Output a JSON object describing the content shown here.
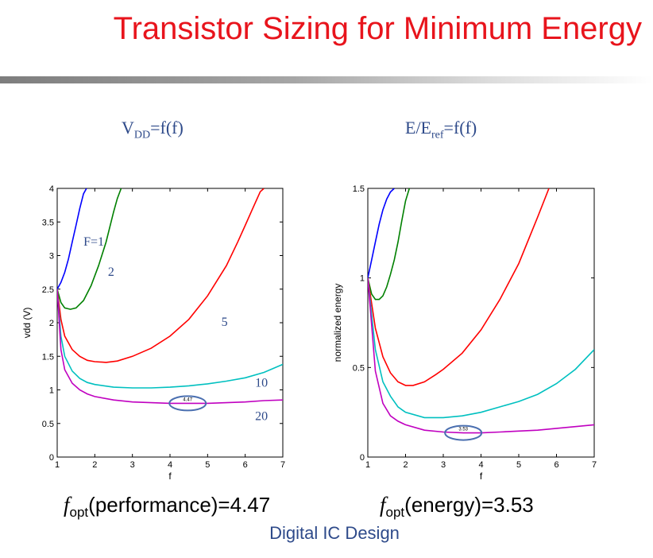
{
  "slide": {
    "title": "Transistor Sizing for Minimum Energy",
    "footer": "Digital IC Design"
  },
  "headings": {
    "left": {
      "base": "V",
      "sub": "DD",
      "rest": "=f(f)"
    },
    "right": {
      "base": "E/E",
      "sub": "ref",
      "rest": "=f(f)"
    }
  },
  "captions": {
    "left": {
      "f": "f",
      "sub": "opt",
      "rest": "(performance)=4.47"
    },
    "right": {
      "f": "f",
      "sub": "opt",
      "rest": "(energy)=3.53"
    }
  },
  "chart_data": [
    {
      "type": "line",
      "title": "",
      "xlabel": "f",
      "ylabel": "vdd (V)",
      "xlim": [
        1,
        7
      ],
      "ylim": [
        0,
        4
      ],
      "xticks": [
        "1",
        "2",
        "3",
        "4",
        "5",
        "6",
        "7"
      ],
      "yticks": [
        "0",
        "0.5",
        "1",
        "1.5",
        "2",
        "2.5",
        "3",
        "3.5",
        "4"
      ],
      "grid": false,
      "series": [
        {
          "name": "F=1",
          "color": "#0000ff",
          "x": [
            1,
            1.1,
            1.2,
            1.3,
            1.4,
            1.5,
            1.6,
            1.7,
            1.78
          ],
          "y": [
            2.5,
            2.6,
            2.75,
            2.95,
            3.2,
            3.45,
            3.7,
            3.92,
            4.0
          ]
        },
        {
          "name": "2",
          "color": "#008000",
          "x": [
            1,
            1.1,
            1.2,
            1.35,
            1.5,
            1.7,
            1.9,
            2.1,
            2.3,
            2.5,
            2.6,
            2.7
          ],
          "y": [
            2.5,
            2.3,
            2.22,
            2.2,
            2.22,
            2.33,
            2.55,
            2.85,
            3.2,
            3.65,
            3.85,
            4.0
          ]
        },
        {
          "name": "5",
          "color": "#ff0000",
          "x": [
            1,
            1.1,
            1.2,
            1.4,
            1.6,
            1.8,
            2,
            2.3,
            2.6,
            3,
            3.5,
            4,
            4.5,
            5,
            5.5,
            5.8,
            6,
            6.2,
            6.4,
            6.5
          ],
          "y": [
            2.5,
            2.05,
            1.8,
            1.6,
            1.5,
            1.44,
            1.42,
            1.41,
            1.43,
            1.5,
            1.62,
            1.8,
            2.05,
            2.4,
            2.85,
            3.2,
            3.45,
            3.7,
            3.95,
            4.0
          ]
        },
        {
          "name": "10",
          "color": "#00c0c0",
          "x": [
            1,
            1.1,
            1.2,
            1.4,
            1.6,
            1.8,
            2,
            2.5,
            3,
            3.5,
            4,
            4.5,
            5,
            5.5,
            6,
            6.5,
            7
          ],
          "y": [
            2.5,
            1.8,
            1.5,
            1.28,
            1.17,
            1.11,
            1.08,
            1.04,
            1.03,
            1.03,
            1.04,
            1.06,
            1.09,
            1.13,
            1.18,
            1.26,
            1.38
          ]
        },
        {
          "name": "20",
          "color": "#c000c0",
          "x": [
            1,
            1.1,
            1.2,
            1.4,
            1.6,
            1.8,
            2,
            2.5,
            3,
            3.5,
            4,
            4.47,
            5,
            5.5,
            6,
            6.5,
            7
          ],
          "y": [
            2.5,
            1.6,
            1.3,
            1.1,
            1.0,
            0.94,
            0.9,
            0.85,
            0.82,
            0.81,
            0.8,
            0.8,
            0.8,
            0.81,
            0.82,
            0.84,
            0.85
          ]
        }
      ],
      "annotation": {
        "text": "4.47",
        "x": 4.47,
        "y": 0.8
      }
    },
    {
      "type": "line",
      "title": "",
      "xlabel": "f",
      "ylabel": "normalized energy",
      "xlim": [
        1,
        7
      ],
      "ylim": [
        0,
        1.5
      ],
      "xticks": [
        "1",
        "2",
        "3",
        "4",
        "5",
        "6",
        "7"
      ],
      "yticks": [
        "0",
        "0.5",
        "1",
        "1.5"
      ],
      "grid": false,
      "series": [
        {
          "name": "F=1",
          "color": "#0000ff",
          "x": [
            1,
            1.1,
            1.2,
            1.3,
            1.4,
            1.5,
            1.6,
            1.7
          ],
          "y": [
            1.0,
            1.1,
            1.2,
            1.3,
            1.38,
            1.44,
            1.48,
            1.5
          ]
        },
        {
          "name": "2",
          "color": "#008000",
          "x": [
            1,
            1.1,
            1.2,
            1.3,
            1.4,
            1.5,
            1.6,
            1.7,
            1.8,
            1.9,
            2.0,
            2.1
          ],
          "y": [
            1.0,
            0.91,
            0.88,
            0.88,
            0.9,
            0.95,
            1.02,
            1.1,
            1.2,
            1.32,
            1.43,
            1.5
          ]
        },
        {
          "name": "5",
          "color": "#ff0000",
          "x": [
            1,
            1.2,
            1.4,
            1.6,
            1.8,
            2,
            2.2,
            2.5,
            2.8,
            3,
            3.5,
            4,
            4.5,
            5,
            5.5,
            5.8
          ],
          "y": [
            1.0,
            0.72,
            0.56,
            0.47,
            0.42,
            0.4,
            0.4,
            0.42,
            0.46,
            0.49,
            0.58,
            0.71,
            0.88,
            1.08,
            1.34,
            1.5
          ]
        },
        {
          "name": "10",
          "color": "#00c0c0",
          "x": [
            1,
            1.2,
            1.4,
            1.6,
            1.8,
            2,
            2.5,
            3,
            3.5,
            4,
            4.5,
            5,
            5.5,
            6,
            6.5,
            7
          ],
          "y": [
            1.0,
            0.6,
            0.42,
            0.34,
            0.28,
            0.25,
            0.22,
            0.22,
            0.23,
            0.25,
            0.28,
            0.31,
            0.35,
            0.41,
            0.49,
            0.6
          ]
        },
        {
          "name": "20",
          "color": "#c000c0",
          "x": [
            1,
            1.2,
            1.4,
            1.6,
            1.8,
            2,
            2.5,
            3,
            3.53,
            4,
            4.5,
            5,
            5.5,
            6,
            6.5,
            7
          ],
          "y": [
            1.0,
            0.48,
            0.3,
            0.23,
            0.2,
            0.18,
            0.15,
            0.14,
            0.135,
            0.135,
            0.14,
            0.145,
            0.15,
            0.16,
            0.17,
            0.18
          ]
        }
      ],
      "annotation": {
        "text": "3.53",
        "x": 3.53,
        "y": 0.135
      }
    }
  ],
  "curve_labels": [
    "F=1",
    "2",
    "5",
    "10",
    "20"
  ]
}
